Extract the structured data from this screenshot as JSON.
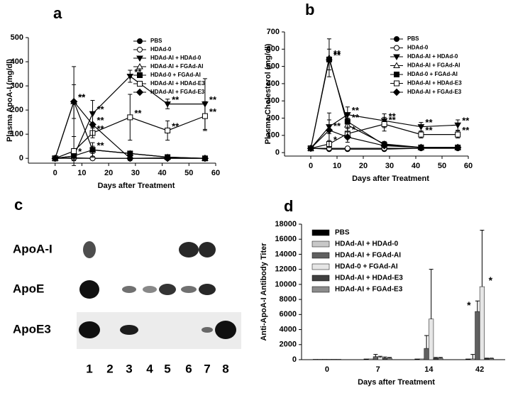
{
  "chart_data": [
    {
      "type": "line",
      "panel": "a",
      "ylabel": "Plasma ApoA-I (mg/dl)",
      "xlabel": "Days after Treatment",
      "x": [
        0,
        7,
        14,
        28,
        42,
        56
      ],
      "xlim": [
        -10,
        60
      ],
      "xticks": [
        0,
        10,
        20,
        30,
        40,
        50,
        60
      ],
      "ylim": [
        -20,
        500
      ],
      "yticks": [
        0,
        100,
        200,
        300,
        400,
        500
      ],
      "series": [
        {
          "name": "PBS",
          "marker": "circle",
          "filled": true,
          "values": [
            0,
            2,
            0,
            0,
            2,
            0
          ],
          "errors": [
            0,
            5,
            5,
            5,
            5,
            5
          ],
          "significance": [
            null,
            null,
            null,
            null,
            null,
            null
          ]
        },
        {
          "name": "HDAd-0",
          "marker": "circle",
          "filled": false,
          "values": [
            0,
            0,
            0,
            0,
            0,
            0
          ],
          "errors": [
            0,
            5,
            5,
            5,
            5,
            5
          ],
          "significance": [
            null,
            null,
            null,
            null,
            null,
            null
          ]
        },
        {
          "name": "HDAd-AI + HDAd-0",
          "marker": "triangle-down",
          "filled": true,
          "values": [
            0,
            10,
            185,
            340,
            225,
            225
          ],
          "errors": [
            0,
            20,
            55,
            25,
            20,
            105
          ],
          "significance": [
            null,
            null,
            "**",
            "**",
            "**",
            "**"
          ]
        },
        {
          "name": "HDAd-AI + FGAd-AI",
          "marker": "triangle-up",
          "filled": false,
          "values": [
            0,
            235,
            35,
            20,
            5,
            0
          ],
          "errors": [
            0,
            70,
            30,
            10,
            5,
            5
          ],
          "significance": [
            null,
            "**",
            null,
            null,
            null,
            null
          ]
        },
        {
          "name": "HDAd-0 + FGAd-AI",
          "marker": "square",
          "filled": true,
          "values": [
            0,
            10,
            35,
            20,
            5,
            0
          ],
          "errors": [
            0,
            15,
            15,
            10,
            5,
            5
          ],
          "significance": [
            null,
            "*",
            "**",
            null,
            null,
            null
          ]
        },
        {
          "name": "HDAd-AI + HDAd-E3",
          "marker": "square",
          "filled": false,
          "values": [
            0,
            30,
            105,
            170,
            115,
            175
          ],
          "errors": [
            0,
            60,
            20,
            95,
            40,
            60
          ],
          "significance": [
            null,
            null,
            "**",
            "**",
            "**",
            "**"
          ]
        },
        {
          "name": "HDAd-AI + FGAd-E3",
          "marker": "diamond",
          "filled": true,
          "values": [
            0,
            235,
            140,
            0,
            0,
            0
          ],
          "errors": [
            0,
            145,
            45,
            10,
            5,
            5
          ],
          "significance": [
            null,
            "**",
            "**",
            null,
            null,
            null
          ]
        }
      ]
    },
    {
      "type": "line",
      "panel": "b",
      "ylabel": "Plasma Cholesterol (mg/dl)",
      "xlabel": "Days after Treatment",
      "x": [
        0,
        7,
        14,
        28,
        42,
        56
      ],
      "xlim": [
        -10,
        60
      ],
      "xticks": [
        0,
        10,
        20,
        30,
        40,
        50,
        60
      ],
      "ylim": [
        -20,
        700
      ],
      "yticks": [
        0,
        100,
        200,
        300,
        400,
        500,
        600,
        700
      ],
      "series": [
        {
          "name": "PBS",
          "marker": "circle",
          "filled": true,
          "values": [
            25,
            20,
            20,
            20,
            25,
            25
          ],
          "errors": [
            0,
            5,
            5,
            5,
            5,
            5
          ],
          "significance": [
            null,
            null,
            null,
            null,
            null,
            null
          ]
        },
        {
          "name": "HDAd-0",
          "marker": "circle",
          "filled": false,
          "values": [
            25,
            25,
            25,
            25,
            25,
            25
          ],
          "errors": [
            0,
            5,
            5,
            5,
            5,
            5
          ],
          "significance": [
            null,
            null,
            null,
            null,
            null,
            null
          ]
        },
        {
          "name": "HDAd-AI + HDAd-0",
          "marker": "triangle-down",
          "filled": true,
          "values": [
            25,
            150,
            220,
            185,
            150,
            160
          ],
          "errors": [
            0,
            40,
            45,
            40,
            25,
            30
          ],
          "significance": [
            null,
            null,
            "**",
            "**",
            "**",
            "**"
          ]
        },
        {
          "name": "HDAd-AI + FGAd-AI",
          "marker": "triangle-up",
          "filled": false,
          "values": [
            25,
            550,
            160,
            50,
            30,
            30
          ],
          "errors": [
            0,
            110,
            40,
            15,
            5,
            5
          ],
          "significance": [
            null,
            "**",
            null,
            null,
            null,
            null
          ]
        },
        {
          "name": "HDAd-0 + FGAd-AI",
          "marker": "square",
          "filled": true,
          "values": [
            25,
            540,
            180,
            45,
            30,
            30
          ],
          "errors": [
            0,
            60,
            40,
            15,
            5,
            5
          ],
          "significance": [
            null,
            "**",
            "**",
            null,
            null,
            null
          ]
        },
        {
          "name": "HDAd-AI + HDAd-E3",
          "marker": "square",
          "filled": false,
          "values": [
            25,
            50,
            110,
            165,
            105,
            105
          ],
          "errors": [
            0,
            20,
            30,
            40,
            20,
            20
          ],
          "significance": [
            null,
            "*",
            "*",
            "**",
            "**",
            "**"
          ]
        },
        {
          "name": "HDAd-AI + FGAd-E3",
          "marker": "diamond",
          "filled": true,
          "values": [
            25,
            130,
            90,
            40,
            30,
            30
          ],
          "errors": [
            0,
            100,
            30,
            10,
            5,
            5
          ],
          "significance": [
            null,
            "**",
            null,
            null,
            null,
            null
          ]
        }
      ]
    },
    {
      "type": "bar",
      "panel": "d",
      "ylabel": "Anti-ApoA-I Antibody Titer",
      "xlabel": "Days after Treatment",
      "categories": [
        "0",
        "7",
        "14",
        "42"
      ],
      "ylim": [
        0,
        18000
      ],
      "yticks": [
        0,
        2000,
        4000,
        6000,
        8000,
        10000,
        12000,
        14000,
        16000,
        18000
      ],
      "series": [
        {
          "name": "PBS",
          "color": "#000000",
          "values": [
            50,
            100,
            100,
            100
          ],
          "errors": [
            0,
            0,
            0,
            0
          ],
          "significance": [
            null,
            null,
            null,
            null
          ]
        },
        {
          "name": "HDAd-AI + HDAd-0",
          "color": "#c8c8c8",
          "values": [
            50,
            100,
            100,
            100
          ],
          "errors": [
            0,
            0,
            0,
            600
          ],
          "significance": [
            null,
            null,
            null,
            null
          ]
        },
        {
          "name": "HDAd-AI + FGAd-AI",
          "color": "#606060",
          "values": [
            50,
            400,
            1500,
            6400
          ],
          "errors": [
            0,
            300,
            1700,
            1400
          ],
          "significance": [
            null,
            null,
            null,
            "*"
          ]
        },
        {
          "name": "HDAd-0 + FGAd-AI",
          "color": "#e6e6e6",
          "values": [
            50,
            300,
            5400,
            9700
          ],
          "errors": [
            0,
            150,
            6600,
            7500
          ],
          "significance": [
            null,
            null,
            null,
            "*"
          ]
        },
        {
          "name": "HDAd-AI + HDAd-E3",
          "color": "#404040",
          "values": [
            50,
            200,
            200,
            150
          ],
          "errors": [
            0,
            150,
            100,
            50
          ],
          "significance": [
            null,
            null,
            null,
            null
          ]
        },
        {
          "name": "HDAd-AI + FGAd-E3",
          "color": "#8c8c8c",
          "values": [
            50,
            200,
            200,
            150
          ],
          "errors": [
            0,
            100,
            100,
            50
          ],
          "significance": [
            null,
            null,
            null,
            null
          ]
        }
      ]
    }
  ],
  "blot": {
    "panel": "c",
    "rows": [
      "ApoA-I",
      "ApoE",
      "ApoE3"
    ],
    "lanes": [
      "1",
      "2",
      "3",
      "4",
      "5",
      "6",
      "7",
      "8"
    ]
  }
}
